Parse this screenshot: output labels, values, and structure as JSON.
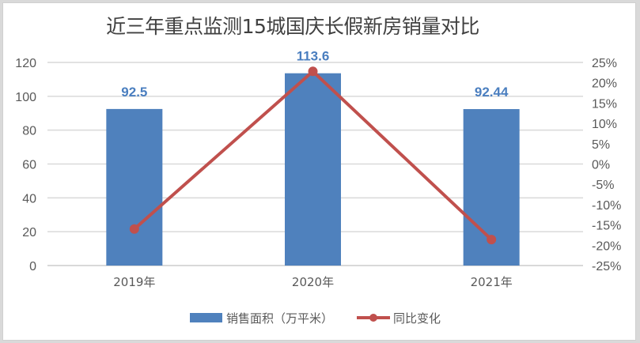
{
  "chart_data": {
    "type": "bar+line",
    "title": "近三年重点监测15城国庆长假新房销量对比",
    "categories": [
      "2019年",
      "2020年",
      "2021年"
    ],
    "series": [
      {
        "name": "销售面积（万平米）",
        "type": "bar",
        "axis": "left",
        "color": "#4f81bd",
        "values": [
          92.5,
          113.6,
          92.44
        ],
        "data_labels": [
          "92.5",
          "113.6",
          "92.44"
        ]
      },
      {
        "name": "同比变化",
        "type": "line",
        "axis": "right",
        "color": "#c0504d",
        "marker": "circle",
        "values": [
          -16.0,
          22.8,
          -18.6
        ],
        "unit": "%"
      }
    ],
    "left_axis": {
      "ylim": [
        0,
        120
      ],
      "ticks": [
        "120",
        "100",
        "80",
        "60",
        "40",
        "20",
        "0"
      ]
    },
    "right_axis": {
      "ylim": [
        -25,
        25
      ],
      "ticks": [
        "25%",
        "20%",
        "15%",
        "10%",
        "5%",
        "0%",
        "-5%",
        "-10%",
        "-15%",
        "-20%",
        "-25%"
      ]
    },
    "grid": true,
    "legend_position": "bottom",
    "xlabel": "",
    "ylabel": ""
  },
  "legend": {
    "bar_label": "销售面积（万平米）",
    "line_label": "同比变化"
  }
}
